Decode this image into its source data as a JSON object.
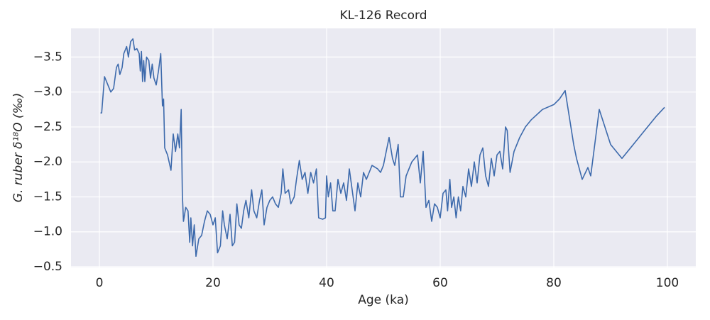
{
  "chart_data": {
    "type": "line",
    "title": "KL-126 Record",
    "xlabel": "Age (ka)",
    "ylabel": "G. ruber δ¹⁸O (‰)",
    "x": [
      0.2,
      0.4,
      0.9,
      1.5,
      2,
      2.5,
      3,
      3.3,
      3.6,
      4,
      4.3,
      4.8,
      5.1,
      5.5,
      5.9,
      6.2,
      6.6,
      7,
      7.2,
      7.4,
      7.6,
      7.8,
      8,
      8.3,
      8.7,
      9,
      9.3,
      9.6,
      10,
      10.4,
      10.8,
      11.1,
      11.3,
      11.5,
      12,
      12.6,
      13,
      13.4,
      13.8,
      14.1,
      14.4,
      14.6,
      14.8,
      15.2,
      15.6,
      15.9,
      16.1,
      16.4,
      16.7,
      17,
      17.5,
      18,
      18.5,
      19,
      19.5,
      20,
      20.4,
      20.8,
      21.3,
      21.7,
      22,
      22.5,
      23,
      23.4,
      23.8,
      24.2,
      24.6,
      25,
      25.4,
      25.8,
      26.3,
      26.8,
      27.2,
      27.7,
      28.2,
      28.6,
      29,
      29.5,
      30,
      30.5,
      31,
      31.5,
      32,
      32.3,
      32.7,
      33.3,
      33.7,
      34.3,
      34.7,
      35.2,
      35.7,
      36.2,
      36.7,
      37.2,
      37.7,
      38.2,
      38.6,
      39.3,
      39.8,
      40,
      40.3,
      40.7,
      41.1,
      41.5,
      42,
      42.5,
      43,
      43.5,
      44,
      44.5,
      45,
      45.5,
      46,
      46.5,
      47,
      47.5,
      48,
      49,
      49.5,
      50,
      51,
      51.6,
      52,
      52.6,
      53,
      53.5,
      54,
      55,
      56,
      56.5,
      57,
      57.5,
      58,
      58.5,
      59,
      59.5,
      60,
      60.5,
      61,
      61.3,
      61.7,
      62,
      62.4,
      62.8,
      63.2,
      63.6,
      64,
      64.5,
      65,
      65.5,
      66,
      66.5,
      67,
      67.5,
      68,
      68.5,
      69,
      69.5,
      70,
      70.5,
      71,
      71.5,
      71.8,
      72.3,
      73,
      74,
      75,
      76,
      78,
      80,
      81,
      82,
      83.5,
      84,
      85,
      86,
      86.5,
      88,
      90,
      92,
      94,
      96,
      98,
      99.5
    ],
    "series": [
      {
        "name": "KL-126",
        "color": "#3d6aac",
        "values": [
          -2.7,
          -2.7,
          -3.22,
          -3.1,
          -3.0,
          -3.05,
          -3.35,
          -3.4,
          -3.25,
          -3.35,
          -3.55,
          -3.65,
          -3.5,
          -3.72,
          -3.76,
          -3.6,
          -3.62,
          -3.55,
          -3.3,
          -3.58,
          -3.15,
          -3.45,
          -3.15,
          -3.5,
          -3.45,
          -3.2,
          -3.4,
          -3.2,
          -3.1,
          -3.3,
          -3.55,
          -2.8,
          -2.9,
          -2.2,
          -2.1,
          -1.88,
          -2.4,
          -2.15,
          -2.4,
          -2.2,
          -2.75,
          -1.55,
          -1.15,
          -1.35,
          -1.3,
          -0.85,
          -1.2,
          -0.8,
          -1.1,
          -0.65,
          -0.9,
          -0.95,
          -1.15,
          -1.3,
          -1.25,
          -1.1,
          -1.2,
          -0.7,
          -0.8,
          -1.3,
          -1.1,
          -0.9,
          -1.25,
          -0.8,
          -0.85,
          -1.4,
          -1.1,
          -1.05,
          -1.3,
          -1.45,
          -1.2,
          -1.6,
          -1.3,
          -1.2,
          -1.45,
          -1.6,
          -1.1,
          -1.35,
          -1.45,
          -1.5,
          -1.4,
          -1.35,
          -1.55,
          -1.9,
          -1.55,
          -1.6,
          -1.4,
          -1.5,
          -1.75,
          -2.02,
          -1.75,
          -1.85,
          -1.55,
          -1.85,
          -1.7,
          -1.9,
          -1.2,
          -1.18,
          -1.2,
          -1.8,
          -1.5,
          -1.7,
          -1.3,
          -1.3,
          -1.75,
          -1.55,
          -1.7,
          -1.45,
          -1.9,
          -1.6,
          -1.3,
          -1.7,
          -1.5,
          -1.85,
          -1.75,
          -1.85,
          -1.95,
          -1.9,
          -1.85,
          -1.95,
          -2.35,
          -2.05,
          -1.95,
          -2.25,
          -1.5,
          -1.5,
          -1.8,
          -2.0,
          -2.1,
          -1.7,
          -2.15,
          -1.35,
          -1.45,
          -1.15,
          -1.4,
          -1.35,
          -1.2,
          -1.55,
          -1.6,
          -1.3,
          -1.75,
          -1.35,
          -1.5,
          -1.2,
          -1.5,
          -1.3,
          -1.65,
          -1.5,
          -1.9,
          -1.65,
          -2.0,
          -1.7,
          -2.1,
          -2.2,
          -1.8,
          -1.65,
          -2.05,
          -1.8,
          -2.1,
          -2.15,
          -1.9,
          -2.5,
          -2.45,
          -1.85,
          -2.15,
          -2.35,
          -2.5,
          -2.6,
          -2.75,
          -2.82,
          -2.9,
          -3.02,
          -2.25,
          -2.05,
          -1.75,
          -1.92,
          -1.8,
          -2.75,
          -2.25,
          -2.05,
          -2.25,
          -2.45,
          -2.65,
          -2.78
        ]
      }
    ],
    "xlim": [
      -5,
      105
    ],
    "xticks": [
      0,
      20,
      40,
      60,
      80,
      100
    ],
    "ylim": [
      -0.49,
      -3.91
    ],
    "yticks": [
      {
        "value": -3.5,
        "label": "−3.5"
      },
      {
        "value": -3,
        "label": "−3.0"
      },
      {
        "value": -2.5,
        "label": "−2.5"
      },
      {
        "value": -2,
        "label": "−2.0"
      },
      {
        "value": -1.5,
        "label": "−1.5"
      },
      {
        "value": -1,
        "label": "−1.0"
      },
      {
        "value": -0.5,
        "label": "−0.5"
      }
    ],
    "grid": true
  }
}
